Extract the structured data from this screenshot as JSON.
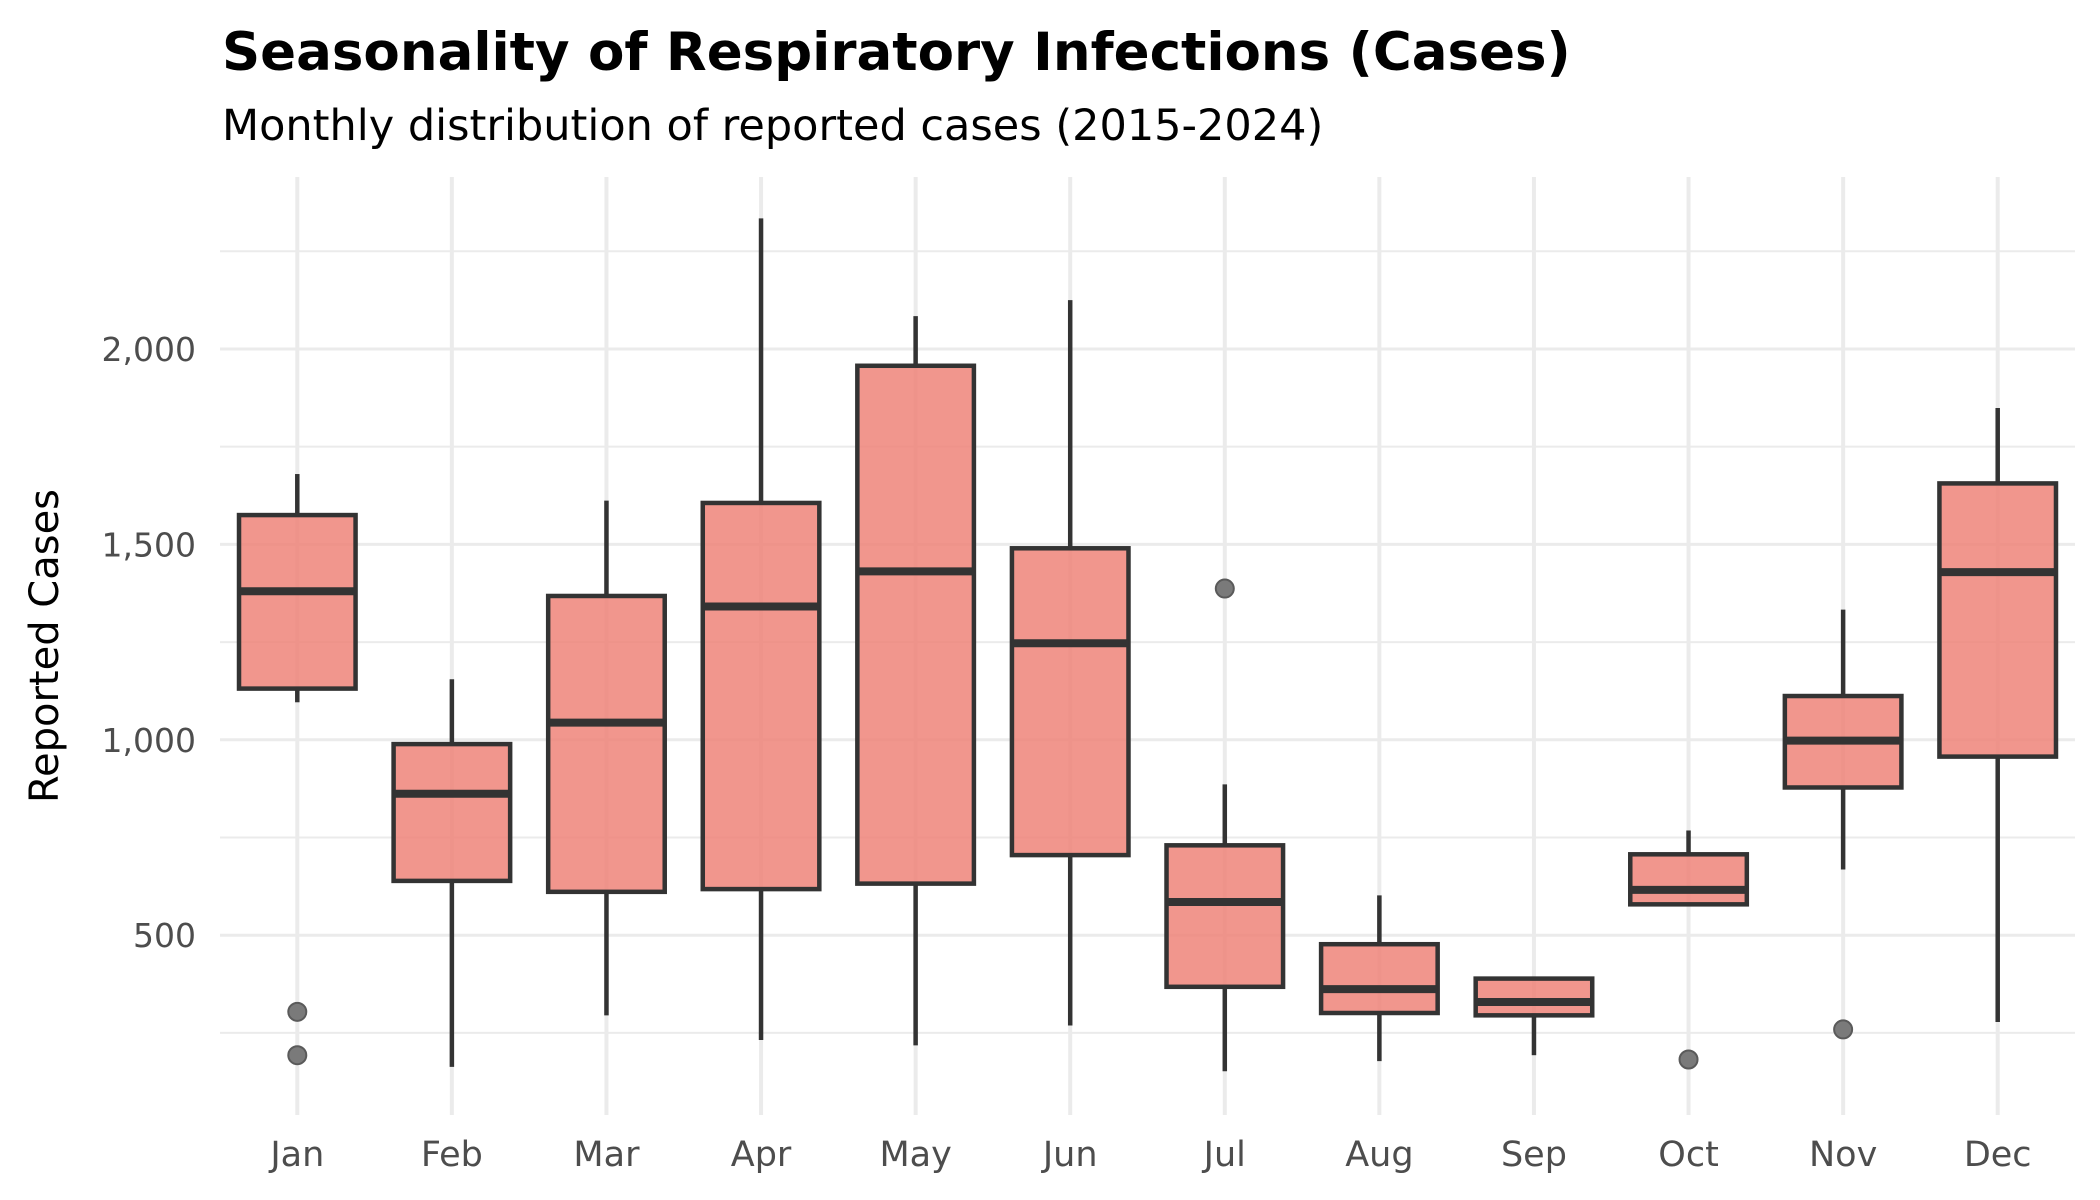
{
  "chart_data": {
    "type": "boxplot",
    "title": "Seasonality of Respiratory Infections (Cases)",
    "subtitle": "Monthly distribution of reported cases (2015-2024)",
    "xlabel": "",
    "ylabel": "Reported Cases",
    "ylim": [
      40,
      2440
    ],
    "y_ticks": [
      500,
      1000,
      1500,
      2000
    ],
    "y_tick_labels": [
      "500",
      "1,000",
      "1,500",
      "2,000"
    ],
    "y_minor_ticks": [
      250,
      750,
      1250,
      1750,
      2250
    ],
    "grid": true,
    "legend": "none",
    "categories": [
      "Jan",
      "Feb",
      "Mar",
      "Apr",
      "May",
      "Jun",
      "Jul",
      "Aug",
      "Sep",
      "Oct",
      "Nov",
      "Dec"
    ],
    "boxes": [
      {
        "month": "Jan",
        "whisker_low": 1096,
        "q1": 1131,
        "median": 1380,
        "q3": 1575,
        "whisker_high": 1680,
        "outliers": [
          304,
          193
        ]
      },
      {
        "month": "Feb",
        "whisker_low": 163,
        "q1": 639,
        "median": 862,
        "q3": 989,
        "whisker_high": 1155,
        "outliers": []
      },
      {
        "month": "Mar",
        "whisker_low": 295,
        "q1": 611,
        "median": 1044,
        "q3": 1368,
        "whisker_high": 1612,
        "outliers": []
      },
      {
        "month": "Apr",
        "whisker_low": 232,
        "q1": 618,
        "median": 1341,
        "q3": 1606,
        "whisker_high": 2334,
        "outliers": []
      },
      {
        "month": "May",
        "whisker_low": 218,
        "q1": 632,
        "median": 1431,
        "q3": 1957,
        "whisker_high": 2084,
        "outliers": []
      },
      {
        "month": "Jun",
        "whisker_low": 269,
        "q1": 705,
        "median": 1247,
        "q3": 1490,
        "whisker_high": 2125,
        "outliers": []
      },
      {
        "month": "Jul",
        "whisker_low": 152,
        "q1": 368,
        "median": 585,
        "q3": 730,
        "whisker_high": 886,
        "outliers": [
          1387
        ]
      },
      {
        "month": "Aug",
        "whisker_low": 178,
        "q1": 301,
        "median": 362,
        "q3": 477,
        "whisker_high": 602,
        "outliers": []
      },
      {
        "month": "Sep",
        "whisker_low": 193,
        "q1": 295,
        "median": 329,
        "q3": 389,
        "whisker_high": 392,
        "outliers": []
      },
      {
        "month": "Oct",
        "whisker_low": 579,
        "q1": 579,
        "median": 616,
        "q3": 707,
        "whisker_high": 768,
        "outliers": [
          182
        ]
      },
      {
        "month": "Nov",
        "whisker_low": 668,
        "q1": 878,
        "median": 998,
        "q3": 1112,
        "whisker_high": 1333,
        "outliers": [
          259
        ]
      },
      {
        "month": "Dec",
        "whisker_low": 278,
        "q1": 957,
        "median": 1429,
        "q3": 1656,
        "whisker_high": 1849,
        "outliers": []
      }
    ],
    "colors": {
      "box_fill": "#EE8479",
      "box_fill_opacity": 0.85,
      "box_stroke": "#333333",
      "outlier_fill": "#7A7A7A",
      "outlier_stroke": "#5A5A5A",
      "grid": "#EBEBEB",
      "tick_text": "#4D4D4D"
    }
  }
}
